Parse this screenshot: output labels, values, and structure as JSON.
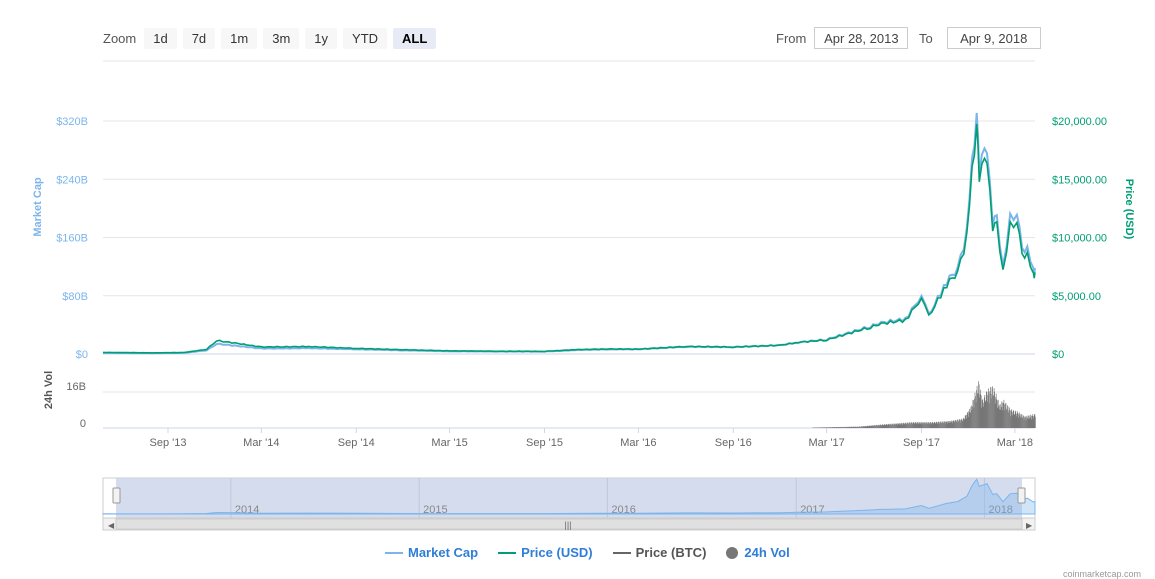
{
  "toolbar": {
    "zoom_label": "Zoom",
    "buttons": [
      "1d",
      "7d",
      "1m",
      "3m",
      "1y",
      "YTD",
      "ALL"
    ],
    "active": "ALL",
    "from_label": "From",
    "from_value": "Apr 28, 2013",
    "to_label": "To",
    "to_value": "Apr 9, 2018"
  },
  "colors": {
    "market_cap": "#7cb5ec",
    "price_usd": "#009e73",
    "price_btc": "#666666",
    "volume": "#777777",
    "navigator_fill": "#ccd6eb"
  },
  "legend": [
    {
      "label": "Market Cap",
      "type": "line",
      "color": "#7cb5ec"
    },
    {
      "label": "Price (USD)",
      "type": "line",
      "color": "#009e73"
    },
    {
      "label": "Price (BTC)",
      "type": "line",
      "color": "#666666"
    },
    {
      "label": "24h Vol",
      "type": "dot",
      "color": "#777777"
    }
  ],
  "watermark": "coinmarketcap.com",
  "chart_data": {
    "type": "line",
    "title": "",
    "x_range": [
      "2013-04-28",
      "2018-04-09"
    ],
    "x_ticks": [
      "Sep '13",
      "Mar '14",
      "Sep '14",
      "Mar '15",
      "Sep '15",
      "Mar '16",
      "Sep '16",
      "Mar '17",
      "Sep '17",
      "Mar '18"
    ],
    "y_left": {
      "label": "Market Cap",
      "ticks": [
        "$0",
        "$80B",
        "$160B",
        "$240B",
        "$320B"
      ],
      "range": [
        0,
        320
      ]
    },
    "y_right": {
      "label": "Price (USD)",
      "ticks": [
        "$0",
        "$5,000.00",
        "$10,000.00",
        "$15,000.00",
        "$20,000.00"
      ],
      "range": [
        0,
        20000
      ]
    },
    "volume_axis": {
      "label": "24h Vol",
      "ticks": [
        "0",
        "16B"
      ]
    },
    "navigator_years": [
      "2014",
      "2015",
      "2016",
      "2017",
      "2018"
    ],
    "series": [
      {
        "name": "Price (USD)",
        "x": [
          "2013-04-28",
          "2013-08-01",
          "2013-10-01",
          "2013-11-15",
          "2013-12-04",
          "2014-01-15",
          "2014-03-01",
          "2014-06-01",
          "2014-09-01",
          "2014-12-01",
          "2015-03-01",
          "2015-06-01",
          "2015-09-01",
          "2015-11-05",
          "2016-01-01",
          "2016-03-01",
          "2016-06-01",
          "2016-09-01",
          "2016-12-01",
          "2017-01-05",
          "2017-03-01",
          "2017-05-25",
          "2017-06-15",
          "2017-08-01",
          "2017-09-01",
          "2017-09-15",
          "2017-10-20",
          "2017-11-10",
          "2017-11-28",
          "2017-12-08",
          "2017-12-17",
          "2017-12-22",
          "2018-01-06",
          "2018-01-17",
          "2018-01-25",
          "2018-02-06",
          "2018-02-20",
          "2018-03-05",
          "2018-03-15",
          "2018-03-25",
          "2018-04-06",
          "2018-04-09"
        ],
        "y": [
          135,
          100,
          120,
          400,
          1150,
          900,
          600,
          640,
          480,
          370,
          270,
          240,
          230,
          380,
          430,
          420,
          650,
          600,
          750,
          1000,
          1200,
          2300,
          2600,
          2900,
          4800,
          3200,
          6000,
          7000,
          10000,
          16000,
          19500,
          15500,
          17000,
          11000,
          11300,
          6900,
          11200,
          11500,
          8200,
          8800,
          6600,
          7000
        ]
      },
      {
        "name": "Market Cap",
        "x": [
          "2013-04-28",
          "2013-08-01",
          "2013-10-01",
          "2013-11-15",
          "2013-12-04",
          "2014-01-15",
          "2014-03-01",
          "2014-06-01",
          "2014-09-01",
          "2014-12-01",
          "2015-03-01",
          "2015-06-01",
          "2015-09-01",
          "2015-11-05",
          "2016-01-01",
          "2016-03-01",
          "2016-06-01",
          "2016-09-01",
          "2016-12-01",
          "2017-01-05",
          "2017-03-01",
          "2017-05-25",
          "2017-06-15",
          "2017-08-01",
          "2017-09-01",
          "2017-09-15",
          "2017-10-20",
          "2017-11-10",
          "2017-11-28",
          "2017-12-08",
          "2017-12-17",
          "2017-12-22",
          "2018-01-06",
          "2018-01-17",
          "2018-01-25",
          "2018-02-06",
          "2018-02-20",
          "2018-03-05",
          "2018-03-15",
          "2018-03-25",
          "2018-04-06",
          "2018-04-09"
        ],
        "y": [
          1.5,
          1.2,
          1.5,
          5,
          14,
          11,
          7.5,
          8,
          6.5,
          5,
          3.7,
          3.4,
          3.3,
          5.5,
          6.4,
          6.4,
          10,
          9.5,
          12,
          16,
          20,
          38,
          43,
          48,
          80,
          53,
          100,
          117,
          167,
          268,
          327,
          260,
          286,
          185,
          190,
          116,
          190,
          195,
          139,
          149,
          112,
          118
        ]
      },
      {
        "name": "24h Vol",
        "x": [
          "2017-02-01",
          "2017-05-01",
          "2017-06-15",
          "2017-08-15",
          "2017-09-20",
          "2017-10-25",
          "2017-11-20",
          "2017-12-05",
          "2017-12-12",
          "2017-12-20",
          "2017-12-28",
          "2018-01-05",
          "2018-01-17",
          "2018-01-30",
          "2018-02-06",
          "2018-02-20",
          "2018-03-05",
          "2018-03-20",
          "2018-04-09"
        ],
        "y": [
          0.2,
          0.6,
          1.5,
          2.5,
          2.5,
          3,
          4,
          9,
          14,
          20,
          12,
          16,
          18,
          10,
          12,
          8,
          7,
          5,
          6
        ]
      }
    ]
  }
}
